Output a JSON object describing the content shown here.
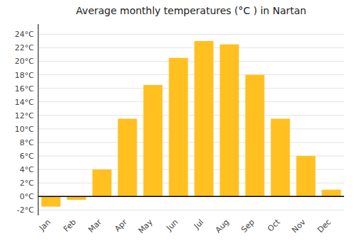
{
  "chart_data": {
    "type": "bar",
    "title": "Average monthly temperatures (°C ) in Nartan",
    "categories": [
      "Jan",
      "Feb",
      "Mar",
      "Apr",
      "May",
      "Jun",
      "Jul",
      "Aug",
      "Sep",
      "Oct",
      "Nov",
      "Dec"
    ],
    "values": [
      -1.5,
      -0.5,
      4.0,
      11.5,
      16.5,
      20.5,
      23.0,
      22.5,
      18.0,
      11.5,
      6.0,
      1.0
    ],
    "color": "#FFC020",
    "ylim": [
      -2.8,
      25.5
    ],
    "yticks": [
      {
        "value": -2,
        "label": "-2°C"
      },
      {
        "value": 0,
        "label": "0°C"
      },
      {
        "value": 2,
        "label": "2°C"
      },
      {
        "value": 4,
        "label": "4°C"
      },
      {
        "value": 6,
        "label": "6°C"
      },
      {
        "value": 8,
        "label": "8°C"
      },
      {
        "value": 10,
        "label": "10°C"
      },
      {
        "value": 12,
        "label": "12°C"
      },
      {
        "value": 14,
        "label": "14°C"
      },
      {
        "value": 16,
        "label": "16°C"
      },
      {
        "value": 18,
        "label": "18°C"
      },
      {
        "value": 20,
        "label": "20°C"
      },
      {
        "value": 22,
        "label": "22°C"
      },
      {
        "value": 24,
        "label": "24°C"
      }
    ],
    "grid": true
  }
}
